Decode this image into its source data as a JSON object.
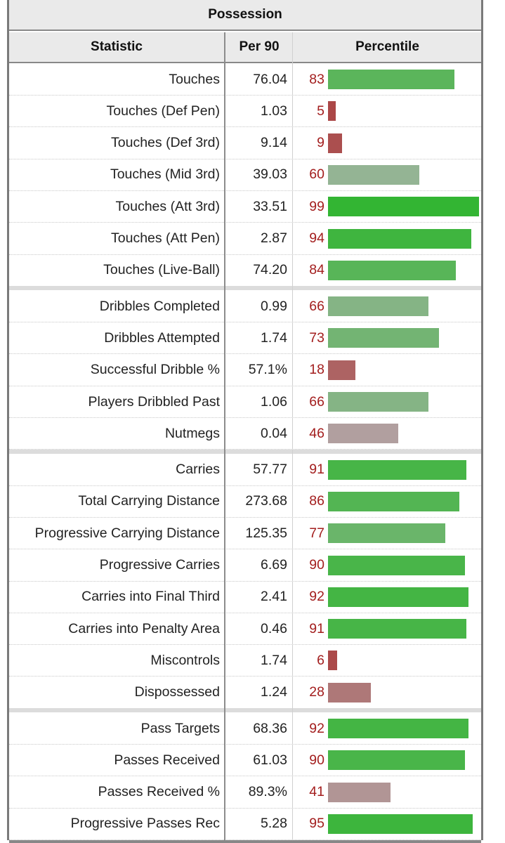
{
  "title": "Possession",
  "columns": {
    "statistic": "Statistic",
    "per90": "Per 90",
    "percentile": "Percentile"
  },
  "chart_data": {
    "type": "bar",
    "title": "Possession",
    "xlabel": "Percentile",
    "xlim": [
      0,
      100
    ],
    "groups": [
      [
        {
          "stat": "Touches",
          "per90": "76.04",
          "pct": 83
        },
        {
          "stat": "Touches (Def Pen)",
          "per90": "1.03",
          "pct": 5
        },
        {
          "stat": "Touches (Def 3rd)",
          "per90": "9.14",
          "pct": 9
        },
        {
          "stat": "Touches (Mid 3rd)",
          "per90": "39.03",
          "pct": 60
        },
        {
          "stat": "Touches (Att 3rd)",
          "per90": "33.51",
          "pct": 99
        },
        {
          "stat": "Touches (Att Pen)",
          "per90": "2.87",
          "pct": 94
        },
        {
          "stat": "Touches (Live-Ball)",
          "per90": "74.20",
          "pct": 84
        }
      ],
      [
        {
          "stat": "Dribbles Completed",
          "per90": "0.99",
          "pct": 66
        },
        {
          "stat": "Dribbles Attempted",
          "per90": "1.74",
          "pct": 73
        },
        {
          "stat": "Successful Dribble %",
          "per90": "57.1%",
          "pct": 18
        },
        {
          "stat": "Players Dribbled Past",
          "per90": "1.06",
          "pct": 66
        },
        {
          "stat": "Nutmegs",
          "per90": "0.04",
          "pct": 46
        }
      ],
      [
        {
          "stat": "Carries",
          "per90": "57.77",
          "pct": 91
        },
        {
          "stat": "Total Carrying Distance",
          "per90": "273.68",
          "pct": 86
        },
        {
          "stat": "Progressive Carrying Distance",
          "per90": "125.35",
          "pct": 77
        },
        {
          "stat": "Progressive Carries",
          "per90": "6.69",
          "pct": 90
        },
        {
          "stat": "Carries into Final Third",
          "per90": "2.41",
          "pct": 92
        },
        {
          "stat": "Carries into Penalty Area",
          "per90": "0.46",
          "pct": 91
        },
        {
          "stat": "Miscontrols",
          "per90": "1.74",
          "pct": 6
        },
        {
          "stat": "Dispossessed",
          "per90": "1.24",
          "pct": 28
        }
      ],
      [
        {
          "stat": "Pass Targets",
          "per90": "68.36",
          "pct": 92
        },
        {
          "stat": "Passes Received",
          "per90": "61.03",
          "pct": 90
        },
        {
          "stat": "Passes Received %",
          "per90": "89.3%",
          "pct": 41
        },
        {
          "stat": "Progressive Passes Rec",
          "per90": "5.28",
          "pct": 95
        }
      ]
    ]
  }
}
